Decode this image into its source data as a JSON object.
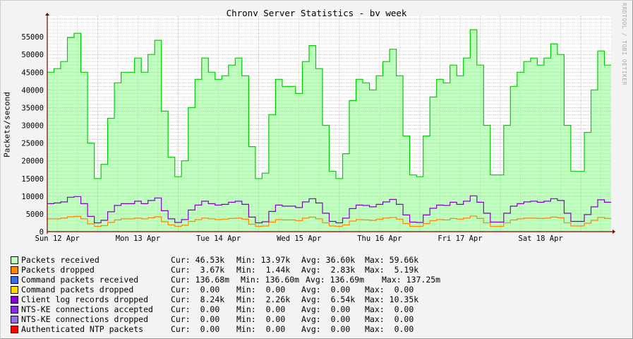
{
  "chart_data": {
    "type": "area",
    "title": "Chrony Server Statistics - by week",
    "ylabel": "Packets/second",
    "watermark": "RRDTOOL / TOBI OETIKER",
    "ylim": [
      0,
      60800
    ],
    "yticks": [
      0,
      5000,
      10000,
      15000,
      20000,
      25000,
      30000,
      35000,
      40000,
      45000,
      50000,
      55000
    ],
    "xticks": [
      "Sun 12 Apr",
      "Mon 13 Apr",
      "Tue 14 Apr",
      "Wed 15 Apr",
      "Thu 16 Apr",
      "Fri 17 Apr",
      "Sat 18 Apr"
    ],
    "grid": true,
    "legend_placement": "bottom",
    "series": [
      {
        "name": "Packets received",
        "color": "#00cc00",
        "fill": "#c0ffc0",
        "values": [
          45000,
          46000,
          48000,
          54800,
          56000,
          45000,
          25000,
          15000,
          19000,
          32000,
          42000,
          45000,
          45000,
          49000,
          45000,
          50000,
          54000,
          34000,
          21000,
          15500,
          20000,
          35000,
          43000,
          49000,
          45000,
          43000,
          44000,
          47000,
          49000,
          44000,
          24000,
          15000,
          16500,
          33000,
          43000,
          41000,
          41000,
          39000,
          48000,
          52500,
          46000,
          30000,
          17000,
          15000,
          22000,
          37000,
          43000,
          42000,
          40000,
          44000,
          48000,
          51500,
          44000,
          27000,
          16000,
          15500,
          27000,
          38000,
          43000,
          42000,
          47000,
          44000,
          49000,
          57000,
          47000,
          30000,
          16000,
          16000,
          30000,
          41000,
          45000,
          48000,
          49000,
          47000,
          49000,
          53000,
          50000,
          30000,
          17000,
          17000,
          28000,
          40000,
          51000,
          47000
        ]
      },
      {
        "name": "Packets dropped",
        "color": "#ff8800",
        "values": [
          3600,
          3600,
          3800,
          4200,
          4300,
          3600,
          2200,
          1500,
          1700,
          2600,
          3300,
          3600,
          3600,
          3800,
          3600,
          3900,
          4200,
          2800,
          1900,
          1500,
          1800,
          2900,
          3400,
          3800,
          3600,
          3400,
          3500,
          3700,
          3800,
          3500,
          2100,
          1500,
          1600,
          2700,
          3400,
          3300,
          3300,
          3100,
          3800,
          4100,
          3600,
          2500,
          1600,
          1500,
          1900,
          3000,
          3400,
          3300,
          3200,
          3500,
          3800,
          4000,
          3500,
          2300,
          1500,
          1500,
          2300,
          3100,
          3400,
          3300,
          3700,
          3500,
          3800,
          4400,
          3700,
          2500,
          1500,
          1500,
          2500,
          3300,
          3600,
          3800,
          3800,
          3700,
          3800,
          4100,
          3900,
          2500,
          1600,
          1600,
          2400,
          3200,
          4000,
          3700
        ]
      },
      {
        "name": "Client log records dropped",
        "color": "#8800cc",
        "values": [
          7900,
          8100,
          8400,
          9700,
          9900,
          7900,
          4300,
          2500,
          3200,
          5600,
          7400,
          7900,
          7900,
          8600,
          7900,
          8800,
          9500,
          5900,
          3600,
          2600,
          3400,
          6100,
          7500,
          8600,
          7900,
          7500,
          7700,
          8300,
          8600,
          7700,
          4100,
          2500,
          2800,
          5700,
          7500,
          7200,
          7200,
          6800,
          8400,
          9300,
          8100,
          5200,
          2900,
          2500,
          3800,
          6500,
          7500,
          7400,
          7000,
          7700,
          8400,
          9100,
          7700,
          4700,
          2700,
          2600,
          4700,
          6600,
          7500,
          7400,
          8300,
          7700,
          8600,
          10100,
          8300,
          5200,
          2700,
          2700,
          5200,
          7200,
          7900,
          8400,
          8600,
          8300,
          8600,
          9300,
          8800,
          5200,
          2900,
          2900,
          4800,
          7000,
          9000,
          8300
        ]
      }
    ]
  },
  "legend": {
    "labels": {
      "cur": "Cur:",
      "min": "Min:",
      "avg": "Avg:",
      "max": "Max:"
    },
    "rows": [
      {
        "name": "Packets received",
        "color": "#c0ffc0",
        "cur": "46.53k",
        "min": "13.97k",
        "avg": "36.60k",
        "max": "59.66k"
      },
      {
        "name": "Packets dropped",
        "color": "#ff8800",
        "cur": " 3.67k",
        "min": " 1.44k",
        "avg": " 2.83k",
        "max": " 5.19k"
      },
      {
        "name": "Command packets received",
        "color": "#3a6ee0",
        "cur": "136.68m",
        "min": "136.60m",
        "avg": "136.69m",
        "max": "137.25m"
      },
      {
        "name": "Command packets dropped",
        "color": "#ffd700",
        "cur": " 0.00",
        "min": " 0.00",
        "avg": " 0.00",
        "max": " 0.00"
      },
      {
        "name": "Client log records dropped",
        "color": "#8800cc",
        "cur": " 8.24k",
        "min": " 2.26k",
        "avg": " 6.54k",
        "max": "10.35k"
      },
      {
        "name": "NTS-KE connections accepted",
        "color": "#8a2be2",
        "cur": " 0.00",
        "min": " 0.00",
        "avg": " 0.00",
        "max": " 0.00"
      },
      {
        "name": "NTS-KE connections dropped",
        "color": "#9370db",
        "cur": " 0.00",
        "min": " 0.00",
        "avg": " 0.00",
        "max": " 0.00"
      },
      {
        "name": "Authenticated NTP packets",
        "color": "#ff0000",
        "cur": " 0.00",
        "min": " 0.00",
        "avg": " 0.00",
        "max": " 0.00"
      }
    ]
  }
}
